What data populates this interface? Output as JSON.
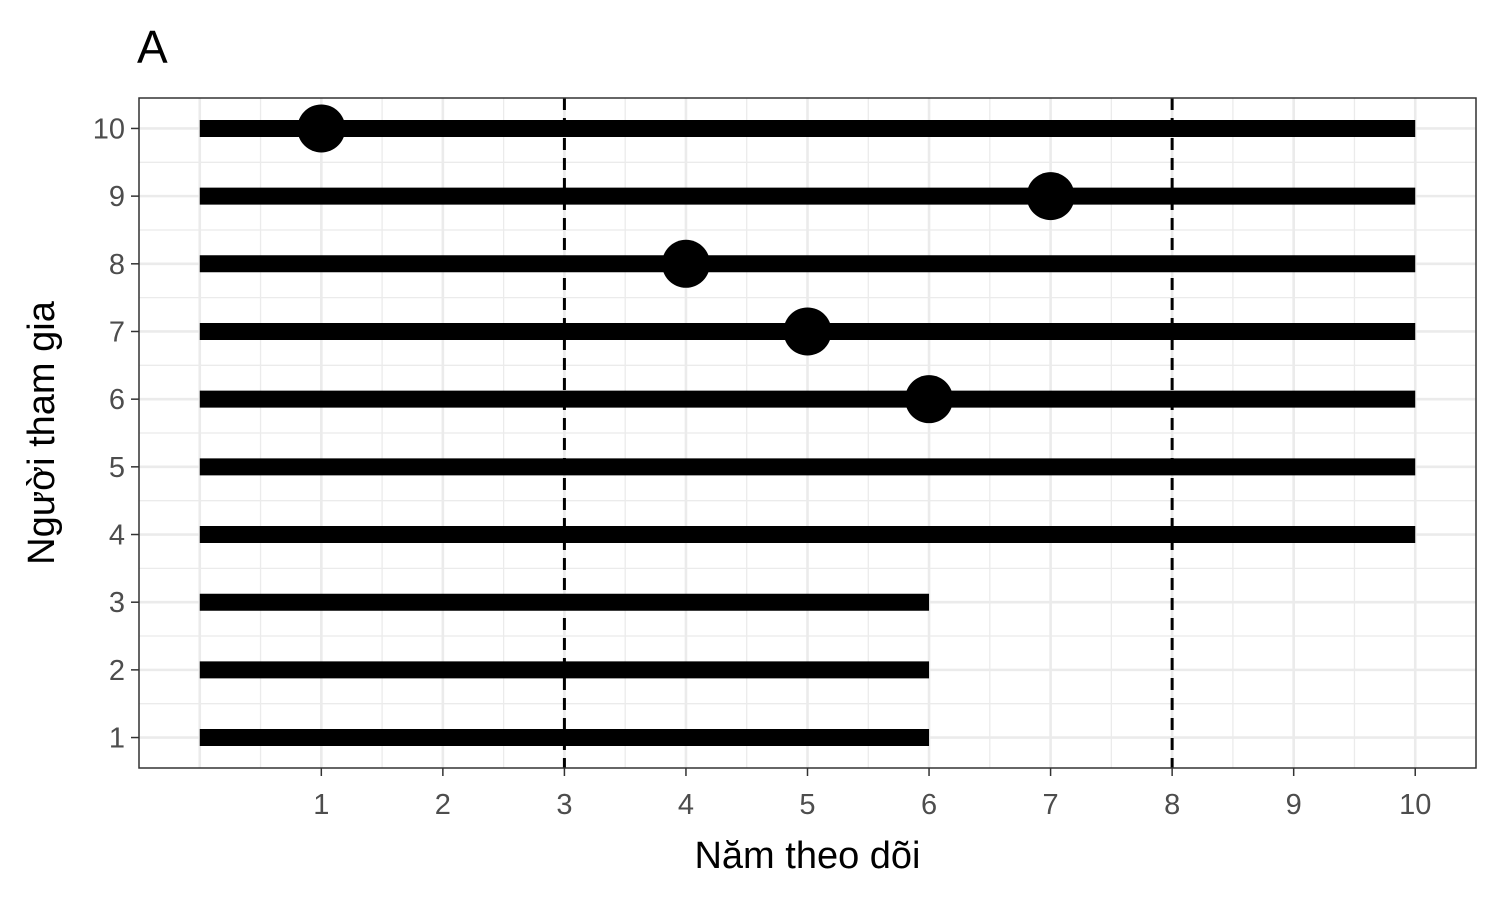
{
  "chart_data": {
    "type": "line",
    "tag": "A",
    "xlabel": "Năm theo dõi",
    "ylabel": "Người tham gia",
    "xlim": [
      -0.5,
      10.5
    ],
    "ylim": [
      0.55,
      10.45
    ],
    "x_ticks": [
      1,
      2,
      3,
      4,
      5,
      6,
      7,
      8,
      9,
      10
    ],
    "y_ticks": [
      1,
      2,
      3,
      4,
      5,
      6,
      7,
      8,
      9,
      10
    ],
    "grid": true,
    "grid_color": "#ebebeb",
    "series": [
      {
        "participant": 1,
        "start": 0,
        "end": 6
      },
      {
        "participant": 2,
        "start": 0,
        "end": 6
      },
      {
        "participant": 3,
        "start": 0,
        "end": 6
      },
      {
        "participant": 4,
        "start": 0,
        "end": 10
      },
      {
        "participant": 5,
        "start": 0,
        "end": 10
      },
      {
        "participant": 6,
        "start": 0,
        "end": 10,
        "event": 6
      },
      {
        "participant": 7,
        "start": 0,
        "end": 10,
        "event": 5
      },
      {
        "participant": 8,
        "start": 0,
        "end": 10,
        "event": 4
      },
      {
        "participant": 9,
        "start": 0,
        "end": 10,
        "event": 7
      },
      {
        "participant": 10,
        "start": 0,
        "end": 10,
        "event": 1
      }
    ],
    "reference_lines": [
      3,
      8
    ]
  }
}
